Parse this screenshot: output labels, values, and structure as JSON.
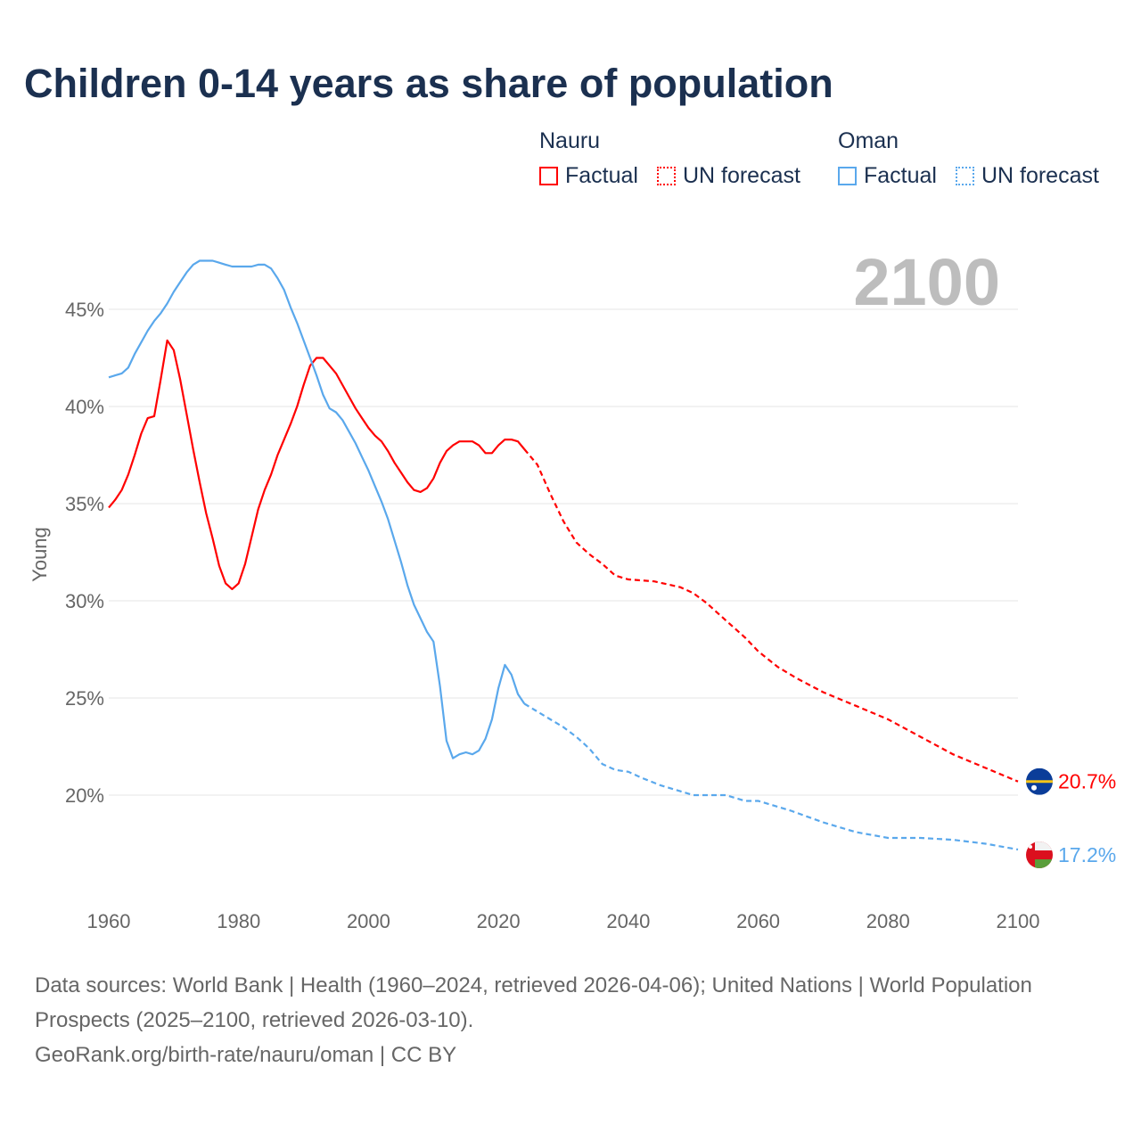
{
  "title": "Children 0-14 years as share of population",
  "legend": {
    "groups": [
      {
        "country": "Nauru",
        "factual": "Factual",
        "forecast": "UN forecast",
        "color": "#ff0000"
      },
      {
        "country": "Oman",
        "factual": "Factual",
        "forecast": "UN forecast",
        "color": "#5aa8ec"
      }
    ]
  },
  "chart_data": {
    "type": "line",
    "title": "Children 0-14 years as share of population",
    "ylabel": "Young",
    "xlabel": "",
    "xlim": [
      1960,
      2100
    ],
    "ylim": [
      15.4,
      49
    ],
    "x_ticks": [
      "1960",
      "1980",
      "2000",
      "2020",
      "2040",
      "2060",
      "2080",
      "2100"
    ],
    "y_ticks": [
      "20%",
      "25%",
      "30%",
      "35%",
      "40%",
      "45%"
    ],
    "year_label": "2100",
    "grid": true,
    "series": [
      {
        "name": "Nauru",
        "color": "#ff0000",
        "end_label": "20.7%",
        "factual_start": 1960,
        "factual": [
          34.8,
          35.2,
          35.7,
          36.5,
          37.5,
          38.6,
          39.4,
          39.5,
          41.4,
          43.4,
          42.9,
          41.4,
          39.6,
          37.8,
          36.1,
          34.5,
          33.2,
          31.8,
          30.9,
          30.6,
          30.9,
          31.9,
          33.3,
          34.7,
          35.7,
          36.5,
          37.5,
          38.3,
          39.1,
          40.0,
          41.1,
          42.1,
          42.5,
          42.5,
          42.1,
          41.7,
          41.1,
          40.5,
          39.9,
          39.4,
          38.9,
          38.5,
          38.2,
          37.7,
          37.1,
          36.6,
          36.1,
          35.7,
          35.6,
          35.8,
          36.3,
          37.1,
          37.7,
          38.0,
          38.2,
          38.2,
          38.2,
          38.0,
          37.6,
          37.6,
          38.0,
          38.3,
          38.3,
          38.2,
          37.8
        ],
        "forecast": [
          [
            2024,
            37.8
          ],
          [
            2025,
            37.4
          ],
          [
            2026,
            37.0
          ],
          [
            2028,
            35.5
          ],
          [
            2030,
            34.1
          ],
          [
            2032,
            33.0
          ],
          [
            2034,
            32.4
          ],
          [
            2036,
            31.9
          ],
          [
            2038,
            31.3
          ],
          [
            2040,
            31.1
          ],
          [
            2044,
            31.0
          ],
          [
            2048,
            30.7
          ],
          [
            2050,
            30.4
          ],
          [
            2052,
            29.9
          ],
          [
            2055,
            29.0
          ],
          [
            2058,
            28.1
          ],
          [
            2060,
            27.4
          ],
          [
            2063,
            26.6
          ],
          [
            2066,
            26.0
          ],
          [
            2070,
            25.3
          ],
          [
            2075,
            24.6
          ],
          [
            2080,
            23.9
          ],
          [
            2085,
            23.0
          ],
          [
            2090,
            22.1
          ],
          [
            2095,
            21.4
          ],
          [
            2100,
            20.7
          ]
        ]
      },
      {
        "name": "Oman",
        "color": "#5aa8ec",
        "end_label": "17.2%",
        "factual_start": 1960,
        "factual": [
          41.5,
          41.6,
          41.7,
          42.0,
          42.7,
          43.3,
          43.9,
          44.4,
          44.8,
          45.3,
          45.9,
          46.4,
          46.9,
          47.3,
          47.5,
          47.5,
          47.5,
          47.4,
          47.3,
          47.2,
          47.2,
          47.2,
          47.2,
          47.3,
          47.3,
          47.1,
          46.6,
          46.0,
          45.1,
          44.3,
          43.4,
          42.5,
          41.6,
          40.6,
          39.9,
          39.7,
          39.3,
          38.7,
          38.1,
          37.4,
          36.7,
          35.9,
          35.1,
          34.2,
          33.1,
          32.0,
          30.8,
          29.8,
          29.1,
          28.4,
          27.9,
          25.6,
          22.8,
          21.9,
          22.1,
          22.2,
          22.1,
          22.3,
          22.9,
          23.9,
          25.5,
          26.7,
          26.2,
          25.2,
          24.7
        ],
        "forecast": [
          [
            2024,
            24.7
          ],
          [
            2025,
            24.5
          ],
          [
            2028,
            23.9
          ],
          [
            2030,
            23.5
          ],
          [
            2032,
            23.0
          ],
          [
            2034,
            22.4
          ],
          [
            2036,
            21.6
          ],
          [
            2038,
            21.3
          ],
          [
            2040,
            21.2
          ],
          [
            2042,
            20.9
          ],
          [
            2045,
            20.5
          ],
          [
            2048,
            20.2
          ],
          [
            2050,
            20.0
          ],
          [
            2055,
            20.0
          ],
          [
            2058,
            19.7
          ],
          [
            2060,
            19.7
          ],
          [
            2065,
            19.2
          ],
          [
            2070,
            18.6
          ],
          [
            2075,
            18.1
          ],
          [
            2080,
            17.8
          ],
          [
            2085,
            17.8
          ],
          [
            2090,
            17.7
          ],
          [
            2095,
            17.5
          ],
          [
            2100,
            17.2
          ]
        ]
      }
    ]
  },
  "footer": {
    "sources": "Data sources: World Bank | Health (1960–2024, retrieved 2026-04-06); United Nations | World Population Prospects (2025–2100, retrieved 2026-03-10).",
    "attribution": "GeoRank.org/birth-rate/nauru/oman | CC BY"
  }
}
